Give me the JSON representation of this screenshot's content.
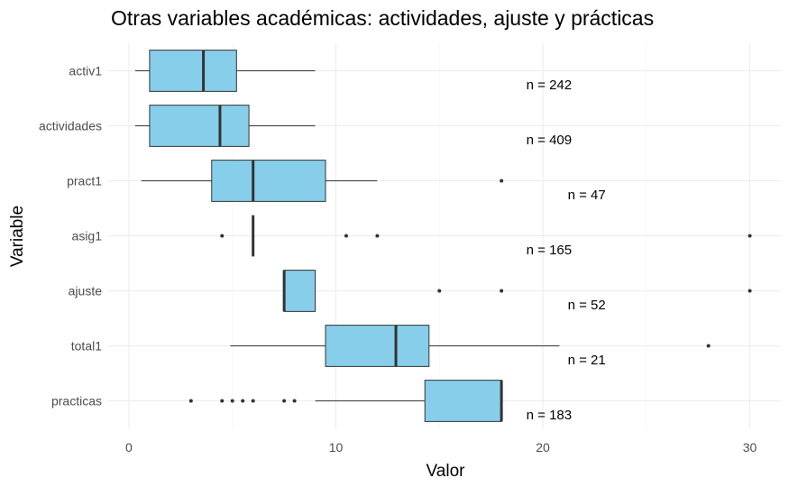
{
  "chart_data": {
    "type": "boxplot",
    "orientation": "horizontal",
    "title": "Otras variables académicas: actividades, ajuste y prácticas",
    "xlabel": "Valor",
    "ylabel": "Variable",
    "xlim": [
      -1,
      31.5
    ],
    "x_ticks": [
      0,
      10,
      20,
      30
    ],
    "box_color": "#87CEEB",
    "grid": "on",
    "categories": [
      "activ1",
      "actividades",
      "pract1",
      "asig1",
      "ajuste",
      "total1",
      "practicas"
    ],
    "boxes": [
      {
        "category": "activ1",
        "whisker_low": 0.3,
        "q1": 1.0,
        "median": 3.6,
        "q3": 5.2,
        "whisker_high": 9.0,
        "outliers": [],
        "n_label": "n = 242",
        "n_x": 19.2,
        "n_y_offset": 0.25
      },
      {
        "category": "actividades",
        "whisker_low": 0.3,
        "q1": 1.0,
        "median": 4.4,
        "q3": 5.8,
        "whisker_high": 9.0,
        "outliers": [],
        "n_label": "n = 409",
        "n_x": 19.2,
        "n_y_offset": 0.25
      },
      {
        "category": "pract1",
        "whisker_low": 0.6,
        "q1": 4.0,
        "median": 6.0,
        "q3": 9.5,
        "whisker_high": 12.0,
        "outliers": [
          18
        ],
        "n_label": "n = 47",
        "n_x": 21.2,
        "n_y_offset": 0.25
      },
      {
        "category": "asig1",
        "whisker_low": 6.0,
        "q1": 6.0,
        "median": 6.0,
        "q3": 6.0,
        "whisker_high": 6.0,
        "outliers": [
          4.5,
          10.5,
          12,
          30
        ],
        "n_label": "n = 165",
        "n_x": 19.2,
        "n_y_offset": 0.25
      },
      {
        "category": "ajuste",
        "whisker_low": 7.5,
        "q1": 7.5,
        "median": 7.5,
        "q3": 9.0,
        "whisker_high": 9.0,
        "outliers": [
          15,
          18,
          30
        ],
        "n_label": "n = 52",
        "n_x": 21.2,
        "n_y_offset": 0.25
      },
      {
        "category": "total1",
        "whisker_low": 4.9,
        "q1": 9.5,
        "median": 12.9,
        "q3": 14.5,
        "whisker_high": 20.8,
        "outliers": [
          28
        ],
        "n_label": "n = 21",
        "n_x": 21.2,
        "n_y_offset": 0.25
      },
      {
        "category": "practicas",
        "whisker_low": 9.0,
        "q1": 14.3,
        "median": 18.0,
        "q3": 18.0,
        "whisker_high": 18.0,
        "outliers": [
          3,
          4.5,
          5,
          5.5,
          6,
          7.5,
          8
        ],
        "n_label": "n = 183",
        "n_x": 19.2,
        "n_y_offset": 0.25
      }
    ]
  }
}
